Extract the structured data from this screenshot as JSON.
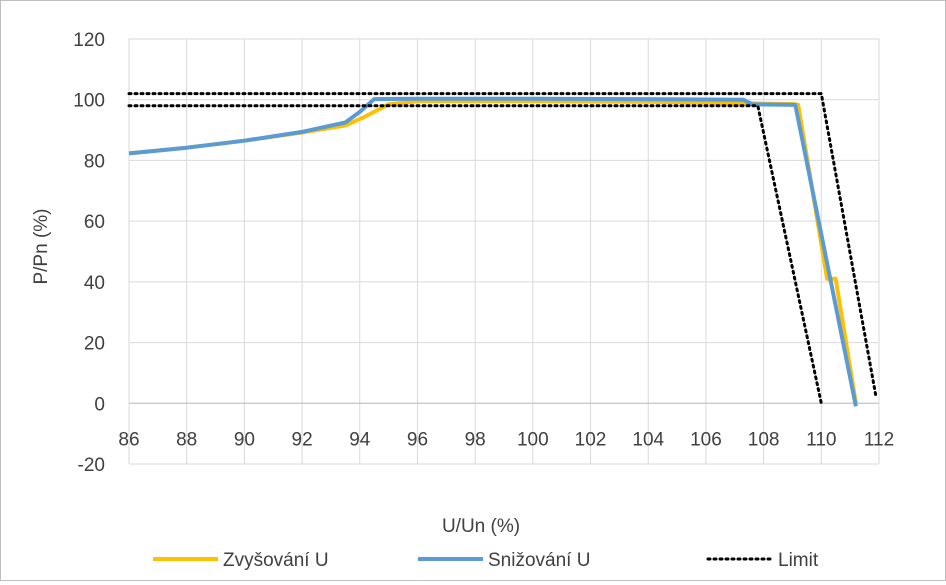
{
  "chart_data": {
    "type": "line",
    "title": "",
    "xlabel": "U/Un (%)",
    "ylabel": "P/Pn (%)",
    "xlim": [
      86,
      112
    ],
    "ylim": [
      -20,
      120
    ],
    "xticks": [
      86,
      88,
      90,
      92,
      94,
      96,
      98,
      100,
      102,
      104,
      106,
      108,
      110,
      112
    ],
    "yticks": [
      -20,
      0,
      20,
      40,
      60,
      80,
      100,
      120
    ],
    "grid": true,
    "legend_position": "bottom",
    "series": [
      {
        "name": "Zvyšování U",
        "color": "#FFC000",
        "style": "solid",
        "points": [
          [
            86,
            82.3
          ],
          [
            88,
            84.2
          ],
          [
            90,
            86.5
          ],
          [
            92,
            89.2
          ],
          [
            93.5,
            91.5
          ],
          [
            94.2,
            94.5
          ],
          [
            95,
            98.5
          ],
          [
            96,
            99.5
          ],
          [
            100,
            99.5
          ],
          [
            104,
            99.3
          ],
          [
            107,
            98.9
          ],
          [
            108,
            98.7
          ],
          [
            109,
            98.6
          ],
          [
            109.2,
            98.3
          ],
          [
            110.2,
            41
          ],
          [
            110.5,
            41
          ],
          [
            111.2,
            0
          ]
        ]
      },
      {
        "name": "Snižování U",
        "color": "#5B9BD5",
        "style": "solid",
        "points": [
          [
            86,
            82.3
          ],
          [
            88,
            84.2
          ],
          [
            90,
            86.5
          ],
          [
            92,
            89.4
          ],
          [
            93.5,
            92.5
          ],
          [
            94,
            96
          ],
          [
            94.5,
            100.2
          ],
          [
            96,
            100.3
          ],
          [
            100,
            100.3
          ],
          [
            104,
            100.2
          ],
          [
            107.3,
            100
          ],
          [
            107.6,
            98.5
          ],
          [
            109.1,
            98.3
          ],
          [
            111.2,
            -1
          ]
        ]
      },
      {
        "name": "Limit",
        "color": "#000000",
        "style": "dotted",
        "segments": [
          [
            [
              86,
              102
            ],
            [
              110,
              102
            ],
            [
              111.9,
              2
            ]
          ],
          [
            [
              86,
              98
            ],
            [
              107.8,
              98
            ],
            [
              110,
              0
            ]
          ]
        ]
      }
    ]
  }
}
